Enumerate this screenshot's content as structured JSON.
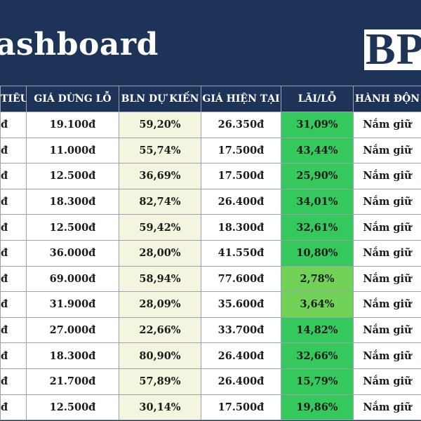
{
  "header": {
    "title": "ashboard",
    "logo": "BP"
  },
  "table": {
    "columns": [
      "TIÊU",
      "GIÁ DỪNG LỖ",
      "BLN DỰ KIẾN",
      "GIÁ HIỆN TẠI",
      "LÃI/LỖ",
      "HÀNH ĐỘN"
    ],
    "rows": [
      {
        "target": "đ",
        "stop_loss": "19.100đ",
        "expected": "59,20%",
        "current": "26.350đ",
        "pl": "31,09%",
        "action": "Nắm giữ"
      },
      {
        "target": "đ",
        "stop_loss": "11.000đ",
        "expected": "55,74%",
        "current": "17.500đ",
        "pl": "43,44%",
        "action": "Nắm giữ"
      },
      {
        "target": "đ",
        "stop_loss": "12.500đ",
        "expected": "36,69%",
        "current": "17.500đ",
        "pl": "25,90%",
        "action": "Nắm giữ"
      },
      {
        "target": "đ",
        "stop_loss": "18.300đ",
        "expected": "82,74%",
        "current": "26.400đ",
        "pl": "34,01%",
        "action": "Nắm giữ"
      },
      {
        "target": "đ",
        "stop_loss": "12.500đ",
        "expected": "59,42%",
        "current": "18.300đ",
        "pl": "32,61%",
        "action": "Nắm giữ"
      },
      {
        "target": "đ",
        "stop_loss": "36.000đ",
        "expected": "28,00%",
        "current": "41.550đ",
        "pl": "10,80%",
        "action": "Nắm giữ"
      },
      {
        "target": "đ",
        "stop_loss": "69.000đ",
        "expected": "58,94%",
        "current": "77.600đ",
        "pl": "2,78%",
        "action": "Nắm giữ"
      },
      {
        "target": "đ",
        "stop_loss": "31.900đ",
        "expected": "28,09%",
        "current": "35.600đ",
        "pl": "3,64%",
        "action": "Nắm giữ"
      },
      {
        "target": "đ",
        "stop_loss": "27.000đ",
        "expected": "22,66%",
        "current": "33.700đ",
        "pl": "14,82%",
        "action": "Nắm giữ"
      },
      {
        "target": "đ",
        "stop_loss": "18.300đ",
        "expected": "80,90%",
        "current": "26.400đ",
        "pl": "32,66%",
        "action": "Nắm giữ"
      },
      {
        "target": "đ",
        "stop_loss": "21.700đ",
        "expected": "57,89%",
        "current": "26.400đ",
        "pl": "15,79%",
        "action": "Nắm giữ"
      },
      {
        "target": "đ",
        "stop_loss": "12.500đ",
        "expected": "30,14%",
        "current": "17.500đ",
        "pl": "19,86%",
        "action": "Nắm giữ"
      }
    ]
  },
  "colors": {
    "header_bg": "#1e3358",
    "expected_bg": "#f4f5df",
    "profit_bg": "#35c85d",
    "profit_low_bg": "#72d258"
  }
}
